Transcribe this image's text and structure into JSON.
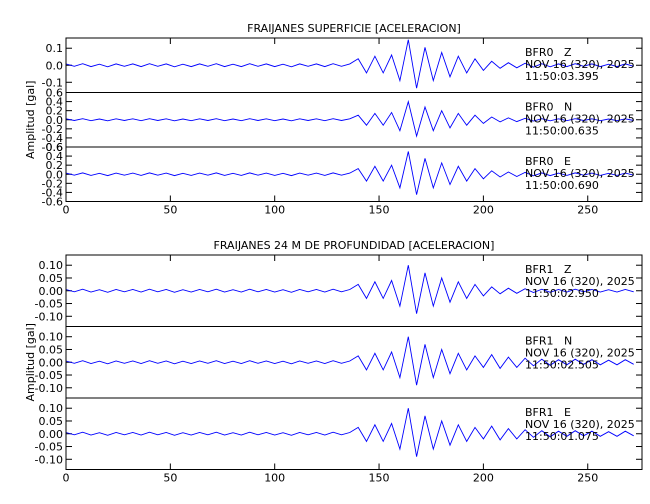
{
  "chart_data": [
    {
      "type": "line",
      "title": "FRAIJANES SUPERFICIE [ACELERACION]",
      "ylabel": "Amplitud [gal]",
      "xlim": [
        0,
        276
      ],
      "xticks": [
        0,
        50,
        100,
        150,
        200,
        250
      ],
      "x": [
        0,
        4,
        8,
        12,
        16,
        20,
        24,
        28,
        32,
        36,
        40,
        44,
        48,
        52,
        56,
        60,
        64,
        68,
        72,
        76,
        80,
        84,
        88,
        92,
        96,
        100,
        104,
        108,
        112,
        116,
        120,
        124,
        128,
        132,
        136,
        140,
        144,
        148,
        152,
        156,
        160,
        164,
        168,
        172,
        176,
        180,
        184,
        188,
        192,
        196,
        200,
        204,
        208,
        212,
        216,
        220,
        224,
        228,
        232,
        236,
        240,
        244,
        248,
        252,
        256,
        260,
        264,
        268,
        272
      ],
      "series": [
        {
          "name": "BFR0   Z",
          "date": "NOV 16 (320), 2025",
          "time": "11:50:03.395",
          "color": "#0000ff",
          "ylim": [
            -0.16,
            0.16
          ],
          "yticks": [
            -0.1,
            {
              "value": 0,
              "label": "0.0"
            },
            0.1
          ],
          "values": [
            0.008,
            -0.006,
            0.009,
            -0.008,
            0.006,
            -0.009,
            0.008,
            -0.006,
            0.008,
            -0.008,
            0.009,
            -0.006,
            0.008,
            -0.009,
            0.006,
            -0.008,
            0.008,
            -0.006,
            0.009,
            -0.008,
            0.006,
            -0.008,
            0.009,
            -0.006,
            0.008,
            -0.008,
            0.006,
            -0.009,
            0.008,
            -0.006,
            0.008,
            -0.008,
            0.009,
            -0.006,
            0.008,
            0.038,
            -0.045,
            0.053,
            -0.045,
            0.06,
            -0.09,
            0.15,
            -0.135,
            0.105,
            -0.09,
            0.075,
            -0.068,
            0.053,
            -0.045,
            0.038,
            -0.03,
            0.023,
            -0.018,
            0.015,
            -0.015,
            0.012,
            -0.011,
            0.009,
            -0.009,
            0.008,
            -0.008,
            0.009,
            -0.006,
            0.008,
            -0.008,
            0.006,
            -0.008,
            0.008,
            -0.006
          ]
        },
        {
          "name": "BFR0   N",
          "date": "NOV 16 (320), 2025",
          "time": "11:50:00.635",
          "color": "#0000ff",
          "ylim": [
            -0.6,
            0.6
          ],
          "yticks": [
            -0.6,
            -0.4,
            -0.2,
            {
              "value": 0,
              "label": "0.0"
            },
            0.2,
            0.4,
            0.6
          ],
          "values": [
            0.02,
            -0.016,
            0.024,
            -0.02,
            0.016,
            -0.024,
            0.02,
            -0.016,
            0.02,
            -0.02,
            0.024,
            -0.016,
            0.02,
            -0.024,
            0.016,
            -0.02,
            0.02,
            -0.016,
            0.024,
            -0.02,
            0.016,
            -0.02,
            0.024,
            -0.016,
            0.02,
            -0.02,
            0.016,
            -0.024,
            0.02,
            -0.016,
            0.02,
            -0.02,
            0.024,
            -0.016,
            0.02,
            0.1,
            -0.12,
            0.14,
            -0.12,
            0.16,
            -0.24,
            0.4,
            -0.36,
            0.28,
            -0.24,
            0.2,
            -0.18,
            0.14,
            -0.12,
            0.1,
            -0.08,
            0.06,
            -0.048,
            0.04,
            -0.04,
            0.032,
            -0.028,
            0.024,
            -0.024,
            0.02,
            -0.02,
            0.024,
            -0.016,
            0.02,
            -0.02,
            0.016,
            -0.02,
            0.02,
            -0.016
          ]
        },
        {
          "name": "BFR0   E",
          "date": "NOV 16 (320), 2025",
          "time": "11:50:00.690",
          "color": "#0000ff",
          "ylim": [
            -0.6,
            0.6
          ],
          "yticks": [
            -0.6,
            -0.4,
            -0.2,
            {
              "value": 0,
              "label": "0.0"
            },
            0.2,
            0.4,
            0.6
          ],
          "values": [
            0.025,
            -0.02,
            0.03,
            -0.025,
            0.02,
            -0.03,
            0.025,
            -0.02,
            0.025,
            -0.025,
            0.03,
            -0.02,
            0.025,
            -0.03,
            0.02,
            -0.025,
            0.025,
            -0.02,
            0.03,
            -0.025,
            0.02,
            -0.025,
            0.03,
            -0.02,
            0.025,
            -0.025,
            0.02,
            -0.03,
            0.025,
            -0.02,
            0.025,
            -0.025,
            0.03,
            -0.02,
            0.025,
            0.125,
            -0.15,
            0.175,
            -0.15,
            0.2,
            -0.3,
            0.5,
            -0.45,
            0.35,
            -0.3,
            0.25,
            -0.225,
            0.175,
            -0.15,
            0.125,
            -0.1,
            0.075,
            -0.06,
            0.05,
            -0.05,
            0.04,
            -0.035,
            0.03,
            -0.03,
            0.025,
            -0.025,
            0.03,
            -0.02,
            0.025,
            -0.025,
            0.02,
            -0.025,
            0.025,
            -0.02
          ]
        }
      ]
    },
    {
      "type": "line",
      "title": "FRAIJANES 24 M DE PROFUNDIDAD [ACELERACION]",
      "ylabel": "Amplitud [gal]",
      "xlim": [
        0,
        276
      ],
      "xticks": [
        0,
        50,
        100,
        150,
        200,
        250
      ],
      "x": [
        0,
        4,
        8,
        12,
        16,
        20,
        24,
        28,
        32,
        36,
        40,
        44,
        48,
        52,
        56,
        60,
        64,
        68,
        72,
        76,
        80,
        84,
        88,
        92,
        96,
        100,
        104,
        108,
        112,
        116,
        120,
        124,
        128,
        132,
        136,
        140,
        144,
        148,
        152,
        156,
        160,
        164,
        168,
        172,
        176,
        180,
        184,
        188,
        192,
        196,
        200,
        204,
        208,
        212,
        216,
        220,
        224,
        228,
        232,
        236,
        240,
        244,
        248,
        252,
        256,
        260,
        264,
        268,
        272
      ],
      "series": [
        {
          "name": "BFR1   Z",
          "date": "NOV 16 (320), 2025",
          "time": "11:50:02.950",
          "color": "#0000ff",
          "ylim": [
            -0.14,
            0.14
          ],
          "yticks": [
            {
              "value": -0.1,
              "label": "-0.10"
            },
            {
              "value": -0.05,
              "label": "-0.05"
            },
            {
              "value": 0,
              "label": "0.00"
            },
            {
              "value": 0.05,
              "label": "0.05"
            },
            {
              "value": 0.1,
              "label": "0.10"
            }
          ],
          "values": [
            0.005,
            -0.004,
            0.006,
            -0.005,
            0.004,
            -0.006,
            0.005,
            -0.004,
            0.005,
            -0.005,
            0.006,
            -0.004,
            0.005,
            -0.006,
            0.004,
            -0.005,
            0.005,
            -0.004,
            0.006,
            -0.005,
            0.004,
            -0.005,
            0.006,
            -0.004,
            0.005,
            -0.005,
            0.004,
            -0.006,
            0.005,
            -0.004,
            0.005,
            -0.005,
            0.006,
            -0.004,
            0.005,
            0.025,
            -0.03,
            0.035,
            -0.03,
            0.04,
            -0.06,
            0.1,
            -0.09,
            0.07,
            -0.06,
            0.05,
            -0.045,
            0.035,
            -0.03,
            0.025,
            -0.02,
            0.015,
            -0.012,
            0.01,
            -0.01,
            0.008,
            -0.007,
            0.006,
            -0.006,
            0.005,
            -0.005,
            0.006,
            -0.004,
            0.005,
            -0.005,
            0.004,
            -0.005,
            0.005,
            -0.004
          ]
        },
        {
          "name": "BFR1   N",
          "date": "NOV 16 (320), 2025",
          "time": "11:50:02.505",
          "color": "#0000ff",
          "ylim": [
            -0.14,
            0.14
          ],
          "yticks": [
            {
              "value": -0.1,
              "label": "-0.10"
            },
            {
              "value": -0.05,
              "label": "-0.05"
            },
            {
              "value": 0,
              "label": "0.00"
            },
            {
              "value": 0.05,
              "label": "0.05"
            },
            {
              "value": 0.1,
              "label": "0.10"
            }
          ],
          "values": [
            0.005,
            -0.004,
            0.006,
            -0.005,
            0.004,
            -0.006,
            0.005,
            -0.004,
            0.005,
            -0.005,
            0.006,
            -0.004,
            0.005,
            -0.006,
            0.004,
            -0.005,
            0.005,
            -0.004,
            0.006,
            -0.005,
            0.004,
            -0.005,
            0.006,
            -0.004,
            0.005,
            -0.005,
            0.004,
            -0.006,
            0.005,
            -0.004,
            0.005,
            -0.005,
            0.006,
            -0.004,
            0.005,
            0.025,
            -0.03,
            0.035,
            -0.03,
            0.04,
            -0.06,
            0.1,
            -0.09,
            0.07,
            -0.06,
            0.05,
            -0.045,
            0.035,
            -0.03,
            0.025,
            -0.02,
            0.03,
            -0.024,
            0.02,
            -0.02,
            0.016,
            -0.014,
            0.012,
            -0.012,
            0.01,
            -0.01,
            0.012,
            -0.008,
            0.01,
            -0.01,
            0.008,
            -0.01,
            0.01,
            -0.008
          ]
        },
        {
          "name": "BFR1   E",
          "date": "NOV 16 (320), 2025",
          "time": "11:50:01.075",
          "color": "#0000ff",
          "ylim": [
            -0.14,
            0.14
          ],
          "yticks": [
            {
              "value": -0.1,
              "label": "-0.10"
            },
            {
              "value": -0.05,
              "label": "-0.05"
            },
            {
              "value": 0,
              "label": "0.00"
            },
            {
              "value": 0.05,
              "label": "0.05"
            },
            {
              "value": 0.1,
              "label": "0.10"
            }
          ],
          "values": [
            0.005,
            -0.004,
            0.006,
            -0.005,
            0.004,
            -0.006,
            0.005,
            -0.004,
            0.005,
            -0.005,
            0.006,
            -0.004,
            0.005,
            -0.006,
            0.004,
            -0.005,
            0.005,
            -0.004,
            0.006,
            -0.005,
            0.004,
            -0.005,
            0.006,
            -0.004,
            0.005,
            -0.005,
            0.004,
            -0.006,
            0.005,
            -0.004,
            0.005,
            -0.005,
            0.006,
            -0.004,
            0.005,
            0.025,
            -0.03,
            0.035,
            -0.03,
            0.04,
            -0.06,
            0.1,
            -0.09,
            0.07,
            -0.06,
            0.05,
            -0.045,
            0.035,
            -0.03,
            0.025,
            -0.02,
            0.03,
            -0.024,
            0.02,
            -0.02,
            0.016,
            -0.014,
            0.012,
            -0.012,
            0.01,
            -0.01,
            0.012,
            -0.008,
            0.01,
            -0.01,
            0.008,
            -0.01,
            0.01,
            -0.008
          ]
        }
      ]
    }
  ]
}
